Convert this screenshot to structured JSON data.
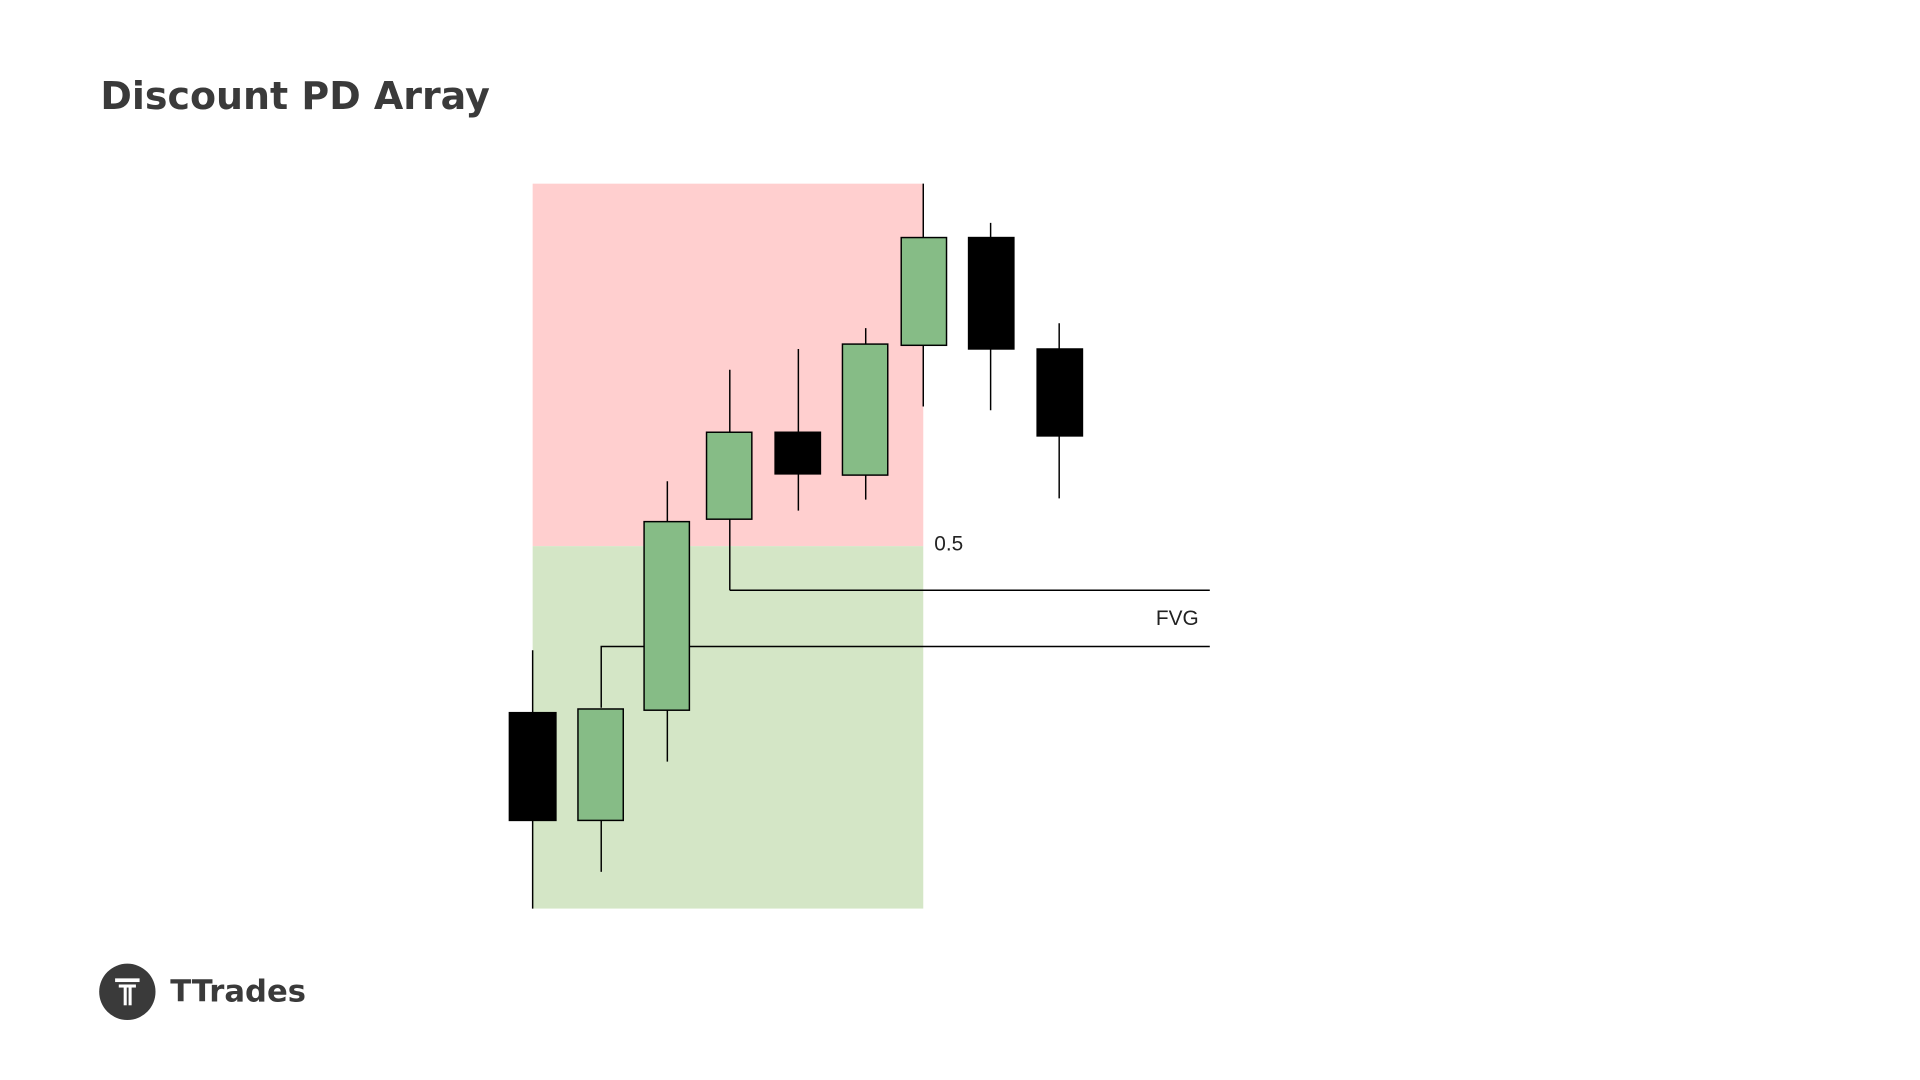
{
  "header": {
    "title": "Discount PD Array"
  },
  "labels": {
    "midpoint": "0.5",
    "gap": "FVG"
  },
  "brand": {
    "name": "TTrades"
  }
}
